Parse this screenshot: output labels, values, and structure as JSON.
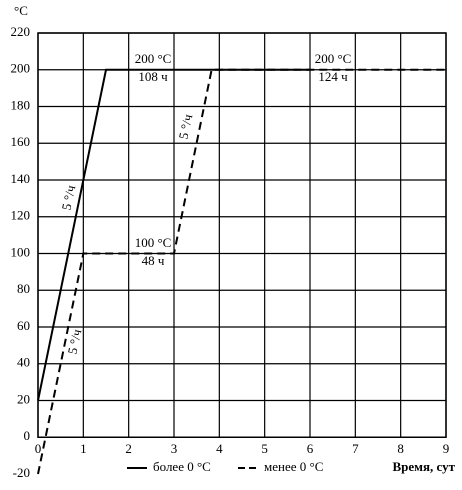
{
  "chart_data": {
    "type": "line",
    "y_label": "°C",
    "x_label": "Время, сут",
    "xlim": [
      0,
      9
    ],
    "xticks": [
      0,
      1,
      2,
      3,
      4,
      5,
      6,
      7,
      8,
      9
    ],
    "ylim": [
      -20,
      220
    ],
    "yticks": [
      -20,
      0,
      20,
      40,
      60,
      80,
      100,
      120,
      140,
      160,
      180,
      200,
      220
    ],
    "grid": true,
    "series": [
      {
        "name": "более 0 °C",
        "color": "#000000",
        "dash": "solid",
        "x": [
          0,
          1.5,
          6
        ],
        "values": [
          20,
          200,
          200
        ]
      },
      {
        "name": "менее 0 °C",
        "color": "#000000",
        "dash": "dashed",
        "x": [
          0,
          1,
          3,
          3.83,
          9
        ],
        "values": [
          -20,
          100,
          100,
          200,
          200
        ]
      }
    ],
    "annotations": [
      {
        "top": "200 °C",
        "bottom": "108 ч"
      },
      {
        "top": "200 °C",
        "bottom": "124 ч"
      },
      {
        "top": "100 °C",
        "bottom": "48 ч"
      },
      {
        "text": "5 °/ч"
      },
      {
        "text": "5 °/ч"
      },
      {
        "text": "5 °/ч"
      }
    ]
  }
}
